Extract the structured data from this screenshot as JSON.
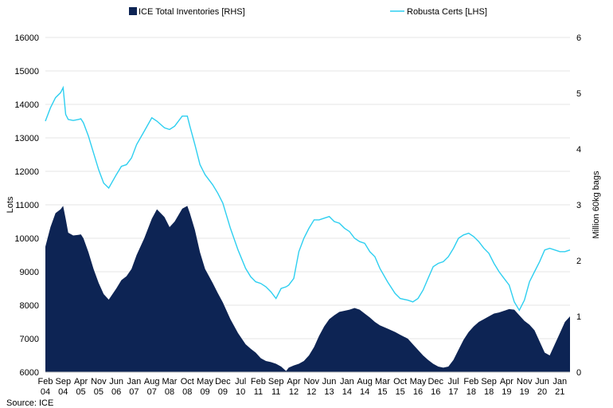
{
  "chart_data": {
    "type": "area",
    "x_tick_labels": [
      [
        "Feb",
        "04"
      ],
      [
        "Sep",
        "04"
      ],
      [
        "Apr",
        "05"
      ],
      [
        "Nov",
        "05"
      ],
      [
        "Jun",
        "06"
      ],
      [
        "Jan",
        "07"
      ],
      [
        "Aug",
        "07"
      ],
      [
        "Mar",
        "08"
      ],
      [
        "Oct",
        "08"
      ],
      [
        "May",
        "09"
      ],
      [
        "Dec",
        "09"
      ],
      [
        "Jul",
        "10"
      ],
      [
        "Feb",
        "11"
      ],
      [
        "Sep",
        "11"
      ],
      [
        "Apr",
        "12"
      ],
      [
        "Nov",
        "12"
      ],
      [
        "Jun",
        "13"
      ],
      [
        "Jan",
        "14"
      ],
      [
        "Aug",
        "14"
      ],
      [
        "Mar",
        "15"
      ],
      [
        "Oct",
        "15"
      ],
      [
        "May",
        "16"
      ],
      [
        "Dec",
        "16"
      ],
      [
        "Jul",
        "17"
      ],
      [
        "Feb",
        "18"
      ],
      [
        "Sep",
        "18"
      ],
      [
        "Apr",
        "19"
      ],
      [
        "Nov",
        "19"
      ],
      [
        "Jun",
        "20"
      ],
      [
        "Jan",
        "21"
      ]
    ],
    "x_range_months": [
      "Feb 04",
      "May 21"
    ],
    "ylabel_left": "Lots",
    "ylabel_right": "Million 60kg bags",
    "ylim_left": [
      6000,
      16000
    ],
    "yticks_left": [
      6000,
      7000,
      8000,
      9000,
      10000,
      11000,
      12000,
      13000,
      14000,
      15000,
      16000
    ],
    "ylim_right": [
      0,
      6
    ],
    "yticks_right": [
      0,
      1,
      2,
      3,
      4,
      5,
      6
    ],
    "grid": "horizontal",
    "legend_placement": "top",
    "source": "Source: ICE",
    "series": [
      {
        "name": "ICE Total Inventories [RHS]",
        "axis": "right",
        "render": "area",
        "color": "#0d2454",
        "points": [
          [
            "Feb 04",
            2.25
          ],
          [
            "Apr 04",
            2.6
          ],
          [
            "Jun 04",
            2.85
          ],
          [
            "Aug 04",
            2.92
          ],
          [
            "Sep 04",
            2.98
          ],
          [
            "Oct 04",
            2.75
          ],
          [
            "Nov 04",
            2.5
          ],
          [
            "Jan 05",
            2.45
          ],
          [
            "Mar 05",
            2.46
          ],
          [
            "Apr 05",
            2.47
          ],
          [
            "May 05",
            2.4
          ],
          [
            "Jul 05",
            2.15
          ],
          [
            "Sep 05",
            1.85
          ],
          [
            "Nov 05",
            1.6
          ],
          [
            "Jan 06",
            1.4
          ],
          [
            "Mar 06",
            1.3
          ],
          [
            "Jun 06",
            1.5
          ],
          [
            "Aug 06",
            1.65
          ],
          [
            "Oct 06",
            1.72
          ],
          [
            "Dec 06",
            1.85
          ],
          [
            "Feb 07",
            2.1
          ],
          [
            "May 07",
            2.4
          ],
          [
            "Aug 07",
            2.75
          ],
          [
            "Oct 07",
            2.92
          ],
          [
            "Jan 08",
            2.78
          ],
          [
            "Mar 08",
            2.6
          ],
          [
            "May 08",
            2.7
          ],
          [
            "Aug 08",
            2.93
          ],
          [
            "Oct 08",
            2.98
          ],
          [
            "Nov 08",
            2.85
          ],
          [
            "Jan 09",
            2.55
          ],
          [
            "Mar 09",
            2.15
          ],
          [
            "May 09",
            1.85
          ],
          [
            "Aug 09",
            1.6
          ],
          [
            "Oct 09",
            1.42
          ],
          [
            "Dec 09",
            1.25
          ],
          [
            "Mar 10",
            0.95
          ],
          [
            "Jun 10",
            0.7
          ],
          [
            "Sep 10",
            0.5
          ],
          [
            "Nov 10",
            0.42
          ],
          [
            "Jan 11",
            0.35
          ],
          [
            "Mar 11",
            0.25
          ],
          [
            "May 11",
            0.2
          ],
          [
            "Jul 11",
            0.18
          ],
          [
            "Sep 11",
            0.15
          ],
          [
            "Nov 11",
            0.1
          ],
          [
            "Jan 12",
            0.02
          ],
          [
            "Feb 12",
            0.08
          ],
          [
            "Apr 12",
            0.12
          ],
          [
            "Jun 12",
            0.15
          ],
          [
            "Aug 12",
            0.2
          ],
          [
            "Oct 12",
            0.3
          ],
          [
            "Dec 12",
            0.45
          ],
          [
            "Feb 13",
            0.65
          ],
          [
            "Apr 13",
            0.82
          ],
          [
            "Jun 13",
            0.95
          ],
          [
            "Aug 13",
            1.02
          ],
          [
            "Oct 13",
            1.08
          ],
          [
            "Dec 13",
            1.1
          ],
          [
            "Feb 14",
            1.12
          ],
          [
            "Apr 14",
            1.15
          ],
          [
            "Jun 14",
            1.12
          ],
          [
            "Aug 14",
            1.05
          ],
          [
            "Oct 14",
            0.98
          ],
          [
            "Dec 14",
            0.9
          ],
          [
            "Feb 15",
            0.84
          ],
          [
            "May 15",
            0.78
          ],
          [
            "Aug 15",
            0.72
          ],
          [
            "Oct 15",
            0.67
          ],
          [
            "Jan 16",
            0.6
          ],
          [
            "Mar 16",
            0.5
          ],
          [
            "May 16",
            0.4
          ],
          [
            "Jul 16",
            0.3
          ],
          [
            "Sep 16",
            0.22
          ],
          [
            "Nov 16",
            0.15
          ],
          [
            "Jan 17",
            0.1
          ],
          [
            "Mar 17",
            0.08
          ],
          [
            "May 17",
            0.1
          ],
          [
            "Jul 17",
            0.22
          ],
          [
            "Sep 17",
            0.4
          ],
          [
            "Nov 17",
            0.58
          ],
          [
            "Jan 18",
            0.72
          ],
          [
            "Mar 18",
            0.82
          ],
          [
            "May 18",
            0.9
          ],
          [
            "Jul 18",
            0.95
          ],
          [
            "Sep 18",
            1.0
          ],
          [
            "Nov 18",
            1.05
          ],
          [
            "Jan 19",
            1.07
          ],
          [
            "Mar 19",
            1.1
          ],
          [
            "May 19",
            1.13
          ],
          [
            "Jul 19",
            1.12
          ],
          [
            "Sep 19",
            1.02
          ],
          [
            "Nov 19",
            0.92
          ],
          [
            "Jan 20",
            0.85
          ],
          [
            "Mar 20",
            0.75
          ],
          [
            "May 20",
            0.55
          ],
          [
            "Jul 20",
            0.35
          ],
          [
            "Sep 20",
            0.3
          ],
          [
            "Nov 20",
            0.5
          ],
          [
            "Jan 21",
            0.7
          ],
          [
            "Mar 21",
            0.9
          ],
          [
            "May 21",
            1.0
          ]
        ]
      },
      {
        "name": "Robusta Certs [LHS]",
        "axis": "left",
        "render": "line",
        "color": "#2ecff0",
        "points": [
          [
            "Feb 04",
            13500
          ],
          [
            "Apr 04",
            13900
          ],
          [
            "Jun 04",
            14200
          ],
          [
            "Aug 04",
            14350
          ],
          [
            "Sep 04",
            14500
          ],
          [
            "Oct 04",
            13700
          ],
          [
            "Nov 04",
            13550
          ],
          [
            "Jan 05",
            13520
          ],
          [
            "Mar 05",
            13550
          ],
          [
            "Apr 05",
            13570
          ],
          [
            "May 05",
            13450
          ],
          [
            "Jul 05",
            13050
          ],
          [
            "Sep 05",
            12550
          ],
          [
            "Nov 05",
            12050
          ],
          [
            "Jan 06",
            11650
          ],
          [
            "Mar 06",
            11500
          ],
          [
            "Jun 06",
            11900
          ],
          [
            "Aug 06",
            12150
          ],
          [
            "Oct 06",
            12200
          ],
          [
            "Dec 06",
            12400
          ],
          [
            "Feb 07",
            12800
          ],
          [
            "May 07",
            13200
          ],
          [
            "Aug 07",
            13600
          ],
          [
            "Oct 07",
            13500
          ],
          [
            "Jan 08",
            13300
          ],
          [
            "Mar 08",
            13250
          ],
          [
            "May 08",
            13350
          ],
          [
            "Aug 08",
            13650
          ],
          [
            "Oct 08",
            13650
          ],
          [
            "Nov 08",
            13350
          ],
          [
            "Jan 09",
            12800
          ],
          [
            "Mar 09",
            12200
          ],
          [
            "May 09",
            11900
          ],
          [
            "Aug 09",
            11600
          ],
          [
            "Oct 09",
            11350
          ],
          [
            "Dec 09",
            11050
          ],
          [
            "Mar 10",
            10300
          ],
          [
            "Jun 10",
            9650
          ],
          [
            "Sep 10",
            9100
          ],
          [
            "Nov 10",
            8850
          ],
          [
            "Jan 11",
            8700
          ],
          [
            "Mar 11",
            8650
          ],
          [
            "May 11",
            8550
          ],
          [
            "Jul 11",
            8400
          ],
          [
            "Sep 11",
            8200
          ],
          [
            "Nov 11",
            8500
          ],
          [
            "Jan 12",
            8550
          ],
          [
            "Feb 12",
            8600
          ],
          [
            "Apr 12",
            8800
          ],
          [
            "Jun 12",
            9600
          ],
          [
            "Aug 12",
            10000
          ],
          [
            "Oct 12",
            10300
          ],
          [
            "Dec 12",
            10550
          ],
          [
            "Feb 13",
            10550
          ],
          [
            "Apr 13",
            10600
          ],
          [
            "Jun 13",
            10650
          ],
          [
            "Aug 13",
            10500
          ],
          [
            "Oct 13",
            10450
          ],
          [
            "Dec 13",
            10300
          ],
          [
            "Feb 14",
            10200
          ],
          [
            "Apr 14",
            10000
          ],
          [
            "Jun 14",
            9900
          ],
          [
            "Aug 14",
            9850
          ],
          [
            "Oct 14",
            9600
          ],
          [
            "Dec 14",
            9450
          ],
          [
            "Feb 15",
            9100
          ],
          [
            "May 15",
            8700
          ],
          [
            "Aug 15",
            8350
          ],
          [
            "Oct 15",
            8200
          ],
          [
            "Jan 16",
            8150
          ],
          [
            "Mar 16",
            8100
          ],
          [
            "May 16",
            8200
          ],
          [
            "Jul 16",
            8450
          ],
          [
            "Sep 16",
            8800
          ],
          [
            "Nov 16",
            9150
          ],
          [
            "Jan 17",
            9250
          ],
          [
            "Mar 17",
            9300
          ],
          [
            "May 17",
            9450
          ],
          [
            "Jul 17",
            9700
          ],
          [
            "Sep 17",
            10000
          ],
          [
            "Nov 17",
            10100
          ],
          [
            "Jan 18",
            10150
          ],
          [
            "Mar 18",
            10050
          ],
          [
            "May 18",
            9900
          ],
          [
            "Jul 18",
            9700
          ],
          [
            "Sep 18",
            9550
          ],
          [
            "Nov 18",
            9250
          ],
          [
            "Jan 19",
            9000
          ],
          [
            "Mar 19",
            8800
          ],
          [
            "May 19",
            8600
          ],
          [
            "Jul 19",
            8100
          ],
          [
            "Sep 19",
            7850
          ],
          [
            "Nov 19",
            8150
          ],
          [
            "Jan 20",
            8700
          ],
          [
            "Mar 20",
            9000
          ],
          [
            "May 20",
            9300
          ],
          [
            "Jul 20",
            9650
          ],
          [
            "Sep 20",
            9700
          ],
          [
            "Nov 20",
            9650
          ],
          [
            "Jan 21",
            9600
          ],
          [
            "Mar 21",
            9600
          ],
          [
            "May 21",
            9650
          ]
        ]
      }
    ]
  }
}
